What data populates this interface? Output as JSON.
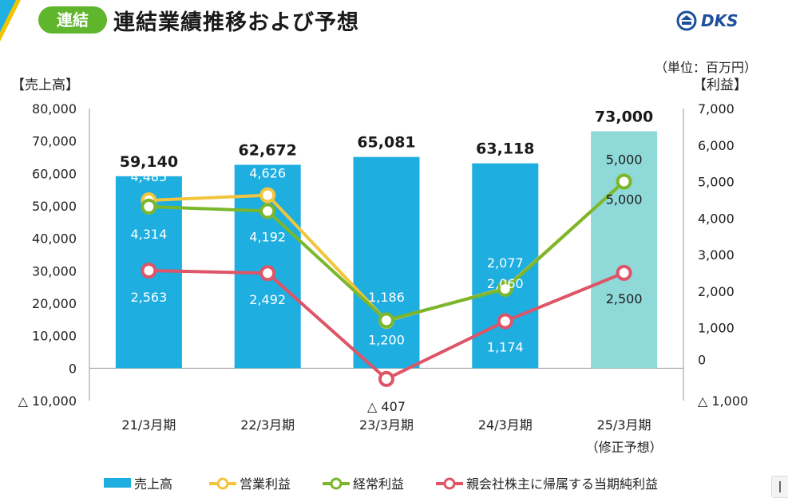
{
  "header": {
    "badge": "連結",
    "title": "連結業績推移および予想",
    "logo": "DKS"
  },
  "colors": {
    "bar": "#1eaee0",
    "bar_forecast": "#8fd9d9",
    "operating": "#f2c53d",
    "ordinary": "#7ab72c",
    "net": "#dd5566",
    "badge": "#5fb52b",
    "logo": "#1e4f9c"
  },
  "chart_data": {
    "type": "bar",
    "unit_note": "（単位：百万円）",
    "left_axis_title": "【売上高】",
    "right_axis_title": "【利益】",
    "categories": [
      "21/3月期",
      "22/3月期",
      "23/3月期",
      "24/3月期",
      "25/3月期"
    ],
    "category_sub": [
      "",
      "",
      "",
      "",
      "（修正予想）"
    ],
    "left_axis": {
      "min": -10000,
      "max": 80000,
      "ticks": [
        80000,
        70000,
        60000,
        50000,
        40000,
        30000,
        20000,
        10000,
        0,
        -10000
      ],
      "tick_labels": [
        "80,000",
        "70,000",
        "60,000",
        "50,000",
        "40,000",
        "30,000",
        "20,000",
        "10,000",
        "0",
        "△ 10,000"
      ]
    },
    "right_axis": {
      "min": -1000,
      "max": 7000,
      "ticks": [
        7000,
        6000,
        5000,
        4000,
        3000,
        2000,
        1000,
        0,
        -1000
      ],
      "tick_labels": [
        "7,000",
        "6,000",
        "5,000",
        "4,000",
        "3,000",
        "2,000",
        "1,000",
        "0",
        "△ 1,000"
      ]
    },
    "bars": {
      "name": "売上高",
      "values": [
        59140,
        62672,
        65081,
        63118,
        73000
      ],
      "labels": [
        "59,140",
        "62,672",
        "65,081",
        "63,118",
        "73,000"
      ],
      "forecast_index": 4
    },
    "lines": [
      {
        "name": "営業利益",
        "color_key": "operating",
        "values": [
          4485,
          4626,
          1186,
          2077,
          5000
        ],
        "labels": [
          "4,485",
          "4,626",
          "1,186",
          "2,077",
          "5,000"
        ]
      },
      {
        "name": "経常利益",
        "color_key": "ordinary",
        "values": [
          4314,
          4192,
          1200,
          2060,
          5000
        ],
        "labels": [
          "4,314",
          "4,192",
          "1,200",
          "2,060",
          "5,000"
        ]
      },
      {
        "name": "親会社株主に帰属する当期純利益",
        "color_key": "net",
        "values": [
          2563,
          2492,
          -407,
          1174,
          2500
        ],
        "labels": [
          "2,563",
          "2,492",
          "△ 407",
          "1,174",
          "2,500"
        ]
      }
    ],
    "legend_position": "bottom"
  }
}
